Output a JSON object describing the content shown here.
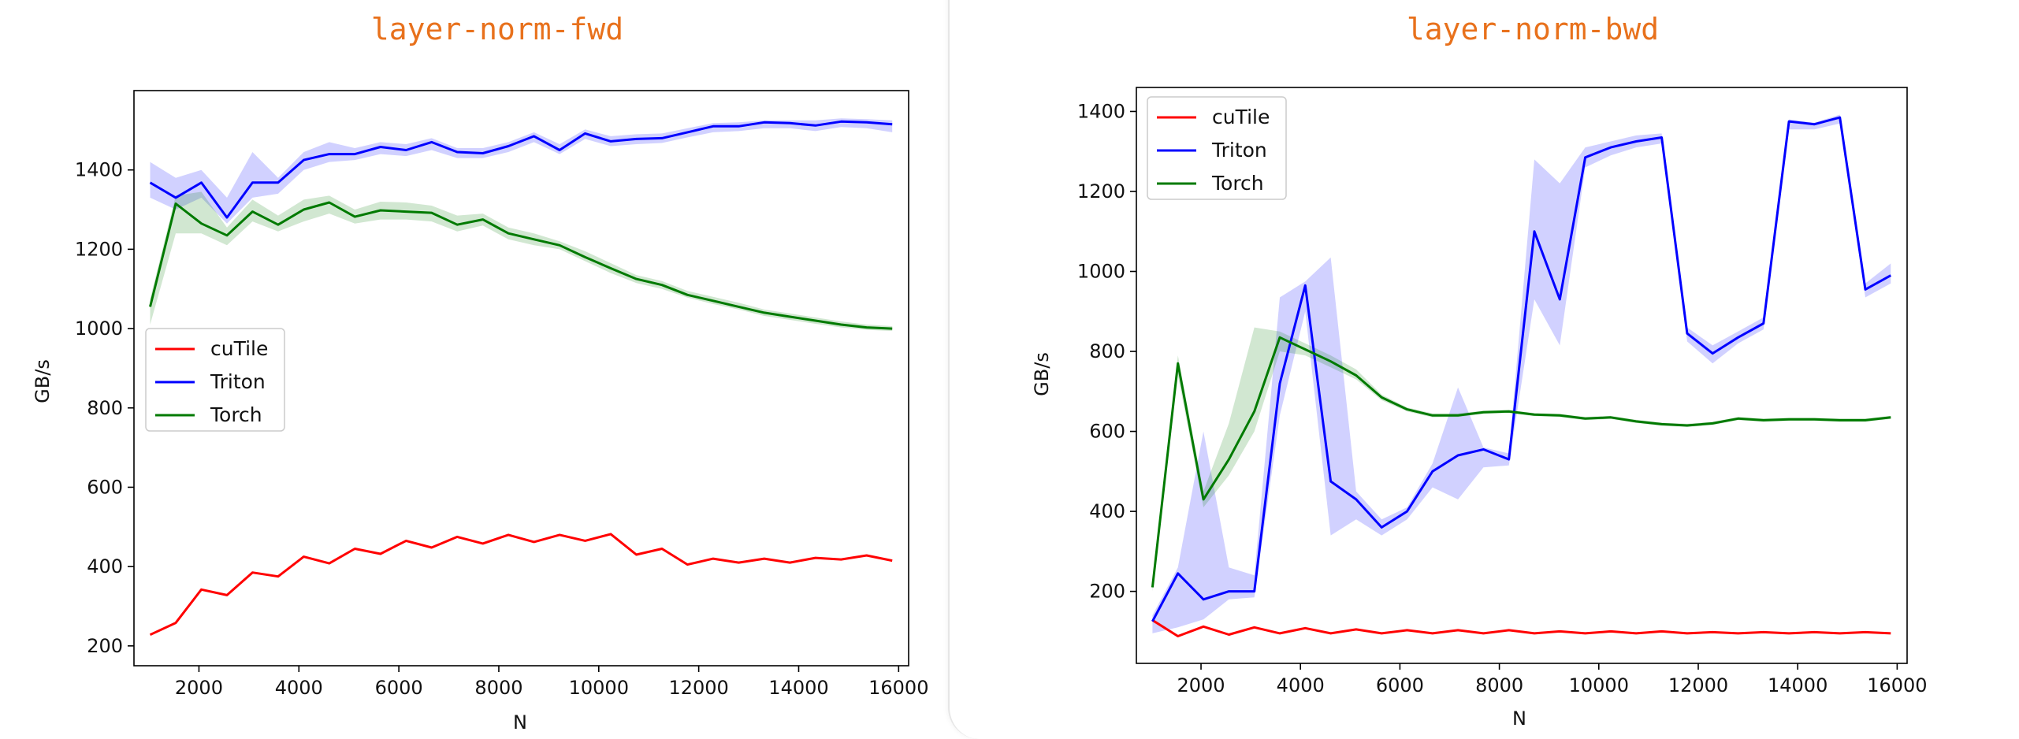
{
  "chart_data": [
    {
      "type": "line",
      "title": "layer-norm-fwd",
      "xlabel": "N",
      "ylabel": "GB/s",
      "xlim": [
        700,
        16200
      ],
      "ylim": [
        150,
        1600
      ],
      "xticks": [
        2000,
        4000,
        6000,
        8000,
        10000,
        12000,
        14000,
        16000
      ],
      "yticks": [
        200,
        400,
        600,
        800,
        1000,
        1200,
        1400
      ],
      "legend": "center-left",
      "x": [
        1024,
        1536,
        2048,
        2560,
        3072,
        3584,
        4096,
        4608,
        5120,
        5632,
        6144,
        6656,
        7168,
        7680,
        8192,
        8704,
        9216,
        9728,
        10240,
        10752,
        11264,
        11776,
        12288,
        12800,
        13312,
        13824,
        14336,
        14848,
        15360,
        15872
      ],
      "series": [
        {
          "name": "cuTile",
          "color": "#ff0000",
          "values": [
            228,
            258,
            342,
            328,
            385,
            375,
            425,
            408,
            445,
            432,
            465,
            448,
            475,
            458,
            480,
            462,
            480,
            465,
            482,
            430,
            445,
            405,
            420,
            410,
            420,
            410,
            422,
            418,
            428,
            415
          ]
        },
        {
          "name": "Triton",
          "color": "#0000ff",
          "values": [
            1368,
            1330,
            1368,
            1280,
            1368,
            1368,
            1425,
            1440,
            1440,
            1458,
            1450,
            1470,
            1445,
            1442,
            1460,
            1485,
            1450,
            1492,
            1472,
            1478,
            1480,
            1495,
            1510,
            1510,
            1520,
            1518,
            1512,
            1522,
            1520,
            1515
          ],
          "lower": [
            1330,
            1300,
            1330,
            1265,
            1330,
            1340,
            1400,
            1420,
            1425,
            1440,
            1435,
            1450,
            1430,
            1430,
            1445,
            1470,
            1440,
            1478,
            1460,
            1465,
            1468,
            1482,
            1495,
            1498,
            1505,
            1505,
            1498,
            1508,
            1505,
            1495
          ],
          "upper": [
            1420,
            1380,
            1400,
            1330,
            1445,
            1380,
            1445,
            1470,
            1455,
            1470,
            1465,
            1480,
            1455,
            1455,
            1470,
            1495,
            1465,
            1502,
            1485,
            1490,
            1492,
            1505,
            1518,
            1520,
            1525,
            1525,
            1525,
            1530,
            1528,
            1525
          ]
        },
        {
          "name": "Torch",
          "color": "#007a00",
          "values": [
            1055,
            1315,
            1265,
            1235,
            1295,
            1262,
            1300,
            1318,
            1282,
            1298,
            1295,
            1292,
            1262,
            1275,
            1240,
            1225,
            1210,
            1180,
            1152,
            1125,
            1110,
            1085,
            1070,
            1055,
            1040,
            1030,
            1020,
            1010,
            1003,
            1000
          ],
          "lower": [
            1010,
            1240,
            1240,
            1210,
            1270,
            1245,
            1270,
            1290,
            1265,
            1275,
            1275,
            1270,
            1245,
            1260,
            1225,
            1210,
            1200,
            1170,
            1140,
            1115,
            1100,
            1078,
            1062,
            1048,
            1032,
            1022,
            1012,
            1003,
            997,
            994
          ],
          "upper": [
            1075,
            1335,
            1345,
            1255,
            1325,
            1285,
            1325,
            1335,
            1300,
            1320,
            1318,
            1310,
            1285,
            1290,
            1255,
            1240,
            1220,
            1195,
            1165,
            1135,
            1120,
            1095,
            1080,
            1065,
            1048,
            1038,
            1028,
            1018,
            1010,
            1006
          ]
        }
      ]
    },
    {
      "type": "line",
      "title": "layer-norm-bwd",
      "xlabel": "N",
      "ylabel": "GB/s",
      "xlim": [
        700,
        16200
      ],
      "ylim": [
        20,
        1460
      ],
      "xticks": [
        2000,
        4000,
        6000,
        8000,
        10000,
        12000,
        14000,
        16000
      ],
      "yticks": [
        200,
        400,
        600,
        800,
        1000,
        1200,
        1400
      ],
      "legend": "top-left",
      "x": [
        1024,
        1536,
        2048,
        2560,
        3072,
        3584,
        4096,
        4608,
        5120,
        5632,
        6144,
        6656,
        7168,
        7680,
        8192,
        8704,
        9216,
        9728,
        10240,
        10752,
        11264,
        11776,
        12288,
        12800,
        13312,
        13824,
        14336,
        14848,
        15360,
        15872
      ],
      "series": [
        {
          "name": "cuTile",
          "color": "#ff0000",
          "values": [
            128,
            88,
            112,
            92,
            110,
            95,
            108,
            95,
            105,
            95,
            103,
            95,
            103,
            95,
            103,
            95,
            100,
            95,
            100,
            95,
            100,
            95,
            98,
            95,
            98,
            95,
            98,
            95,
            98,
            95
          ]
        },
        {
          "name": "Triton",
          "color": "#0000ff",
          "values": [
            125,
            245,
            180,
            200,
            200,
            720,
            965,
            475,
            430,
            360,
            400,
            500,
            540,
            555,
            530,
            1100,
            930,
            1285,
            1310,
            1325,
            1335,
            845,
            795,
            835,
            870,
            1375,
            1368,
            1385,
            955,
            990
          ],
          "lower": [
            95,
            110,
            130,
            180,
            185,
            640,
            900,
            340,
            380,
            340,
            380,
            460,
            430,
            510,
            515,
            930,
            815,
            1260,
            1290,
            1310,
            1320,
            825,
            770,
            820,
            855,
            1355,
            1355,
            1370,
            935,
            970
          ],
          "upper": [
            140,
            260,
            600,
            260,
            240,
            935,
            975,
            1035,
            450,
            380,
            410,
            520,
            710,
            560,
            545,
            1280,
            1220,
            1310,
            1325,
            1340,
            1345,
            860,
            815,
            850,
            885,
            1380,
            1372,
            1392,
            970,
            1020
          ]
        },
        {
          "name": "Torch",
          "color": "#007a00",
          "values": [
            210,
            770,
            430,
            530,
            650,
            835,
            805,
            775,
            740,
            685,
            655,
            640,
            640,
            648,
            650,
            642,
            640,
            632,
            635,
            625,
            618,
            615,
            620,
            632,
            628,
            630,
            630,
            628,
            628,
            635
          ],
          "lower": [
            200,
            740,
            410,
            490,
            600,
            800,
            790,
            760,
            730,
            678,
            650,
            635,
            636,
            644,
            646,
            638,
            636,
            628,
            631,
            621,
            614,
            611,
            616,
            628,
            624,
            626,
            626,
            624,
            624,
            631
          ],
          "upper": [
            225,
            790,
            450,
            620,
            860,
            850,
            820,
            790,
            755,
            692,
            660,
            645,
            645,
            652,
            654,
            646,
            644,
            636,
            639,
            629,
            622,
            619,
            624,
            636,
            632,
            634,
            634,
            632,
            632,
            639
          ]
        }
      ]
    }
  ]
}
